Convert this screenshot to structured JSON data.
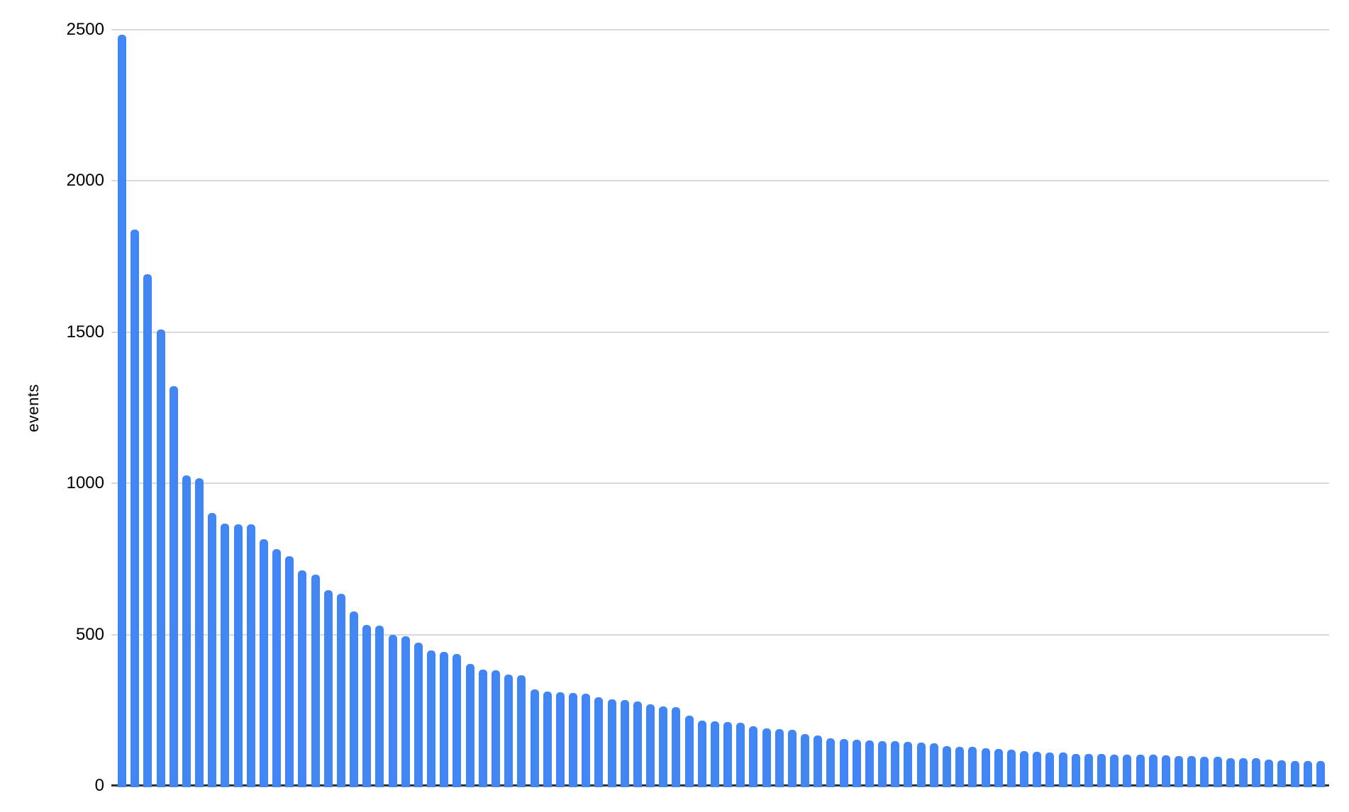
{
  "chart_data": {
    "type": "bar",
    "title": "",
    "xlabel": "",
    "ylabel": "events",
    "ylim": [
      0,
      2500
    ],
    "y_ticks": [
      0,
      500,
      1000,
      1500,
      2000,
      2500
    ],
    "grid": true,
    "legend": "none",
    "x_tick_labels_shown": false,
    "colors": {
      "bar": "#4285f4",
      "gridline": "#d9d9d9",
      "axis_line": "#333333",
      "tick_text": "#000000"
    },
    "values": [
      2483,
      1839,
      1691,
      1508,
      1321,
      1026,
      1016,
      901,
      867,
      865,
      864,
      816,
      782,
      760,
      712,
      698,
      646,
      635,
      576,
      532,
      529,
      498,
      494,
      473,
      447,
      443,
      436,
      403,
      384,
      382,
      368,
      366,
      319,
      312,
      309,
      307,
      304,
      293,
      286,
      283,
      279,
      269,
      262,
      260,
      233,
      215,
      214,
      211,
      208,
      198,
      189,
      187,
      184,
      170,
      166,
      157,
      155,
      152,
      151,
      148,
      147,
      145,
      143,
      141,
      131,
      129,
      128,
      124,
      122,
      119,
      115,
      112,
      110,
      109,
      106,
      106,
      105,
      104,
      103,
      103,
      102,
      101,
      99,
      98,
      96,
      96,
      92,
      92,
      91,
      87,
      84,
      83,
      82,
      82
    ]
  }
}
